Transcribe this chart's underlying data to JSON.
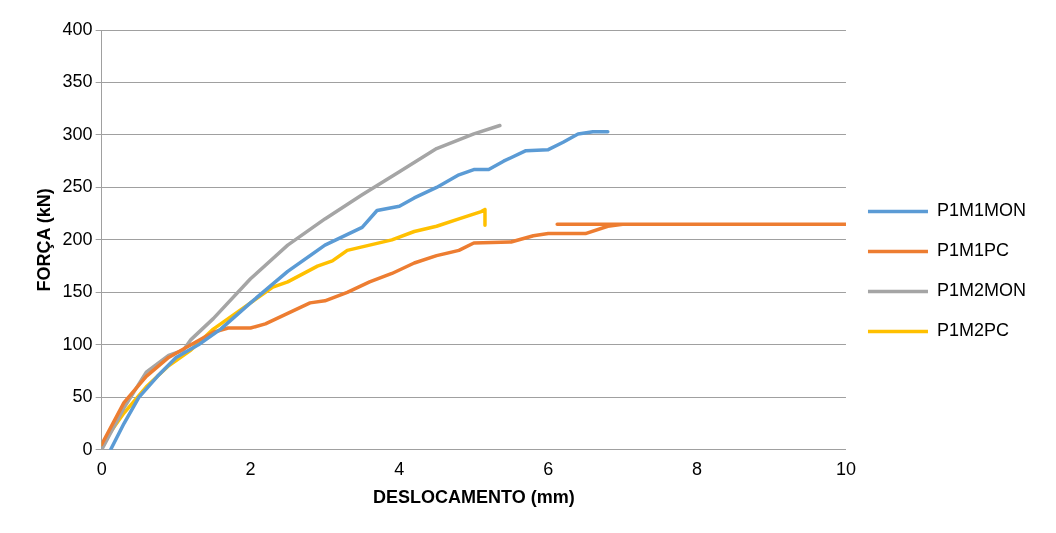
{
  "chart_data": {
    "type": "line",
    "xlabel": "DESLOCAMENTO (mm)",
    "ylabel": "FORÇA (kN)",
    "xlim": [
      0,
      10
    ],
    "xticks": [
      0,
      2,
      4,
      6,
      8,
      10
    ],
    "ylim": [
      0,
      400
    ],
    "yticks": [
      0,
      50,
      100,
      150,
      200,
      250,
      300,
      350,
      400
    ],
    "grid": "y",
    "legend": "right",
    "marker": "none",
    "line_style": "solid",
    "series": [
      {
        "name": "P1M1MON",
        "color": "#5b9bd5",
        "x": [
          0.12,
          0.3,
          0.5,
          0.75,
          1.0,
          1.3,
          1.6,
          2.0,
          2.5,
          3.0,
          3.5,
          3.7,
          4.0,
          4.2,
          4.5,
          4.8,
          5.0,
          5.2,
          5.4,
          5.7,
          6.0,
          6.2,
          6.4,
          6.6,
          6.8
        ],
        "values": [
          0,
          25,
          50,
          70,
          88,
          100,
          115,
          140,
          170,
          195,
          212,
          228,
          232,
          240,
          250,
          262,
          267,
          267,
          275,
          285,
          286,
          293,
          301,
          303,
          303
        ]
      },
      {
        "name": "P1M1PC",
        "color": "#ed7d31",
        "x": [
          0,
          0.3,
          0.6,
          0.9,
          1.2,
          1.5,
          1.7,
          2.0,
          2.2,
          2.5,
          2.8,
          3.0,
          3.3,
          3.6,
          3.9,
          4.2,
          4.5,
          4.8,
          5.0,
          5.5,
          5.8,
          6.0,
          6.5,
          6.8,
          7.0,
          6.12,
          10
        ],
        "values": [
          5,
          45,
          70,
          88,
          100,
          112,
          116,
          116,
          120,
          130,
          140,
          142,
          150,
          160,
          168,
          178,
          185,
          190,
          197,
          198,
          204,
          206,
          206,
          213,
          215,
          215,
          215
        ]
      },
      {
        "name": "P1M2MON",
        "color": "#a5a5a5",
        "x": [
          0,
          0.3,
          0.6,
          0.9,
          1.1,
          1.2,
          1.5,
          2.0,
          2.5,
          3.0,
          3.5,
          4.0,
          4.5,
          5.0,
          5.35
        ],
        "values": [
          0,
          40,
          74,
          90,
          95,
          105,
          125,
          163,
          195,
          220,
          243,
          265,
          287,
          301,
          309
        ]
      },
      {
        "name": "P1M2PC",
        "color": "#ffc000",
        "x": [
          0,
          0.3,
          0.6,
          0.9,
          1.2,
          1.5,
          2.0,
          2.3,
          2.5,
          2.9,
          3.1,
          3.3,
          3.6,
          3.9,
          4.2,
          4.5,
          4.8,
          5.1,
          5.15,
          5.15
        ],
        "values": [
          5,
          35,
          60,
          80,
          95,
          115,
          140,
          155,
          160,
          175,
          180,
          190,
          195,
          200,
          208,
          213,
          220,
          227,
          229,
          214
        ]
      }
    ]
  }
}
